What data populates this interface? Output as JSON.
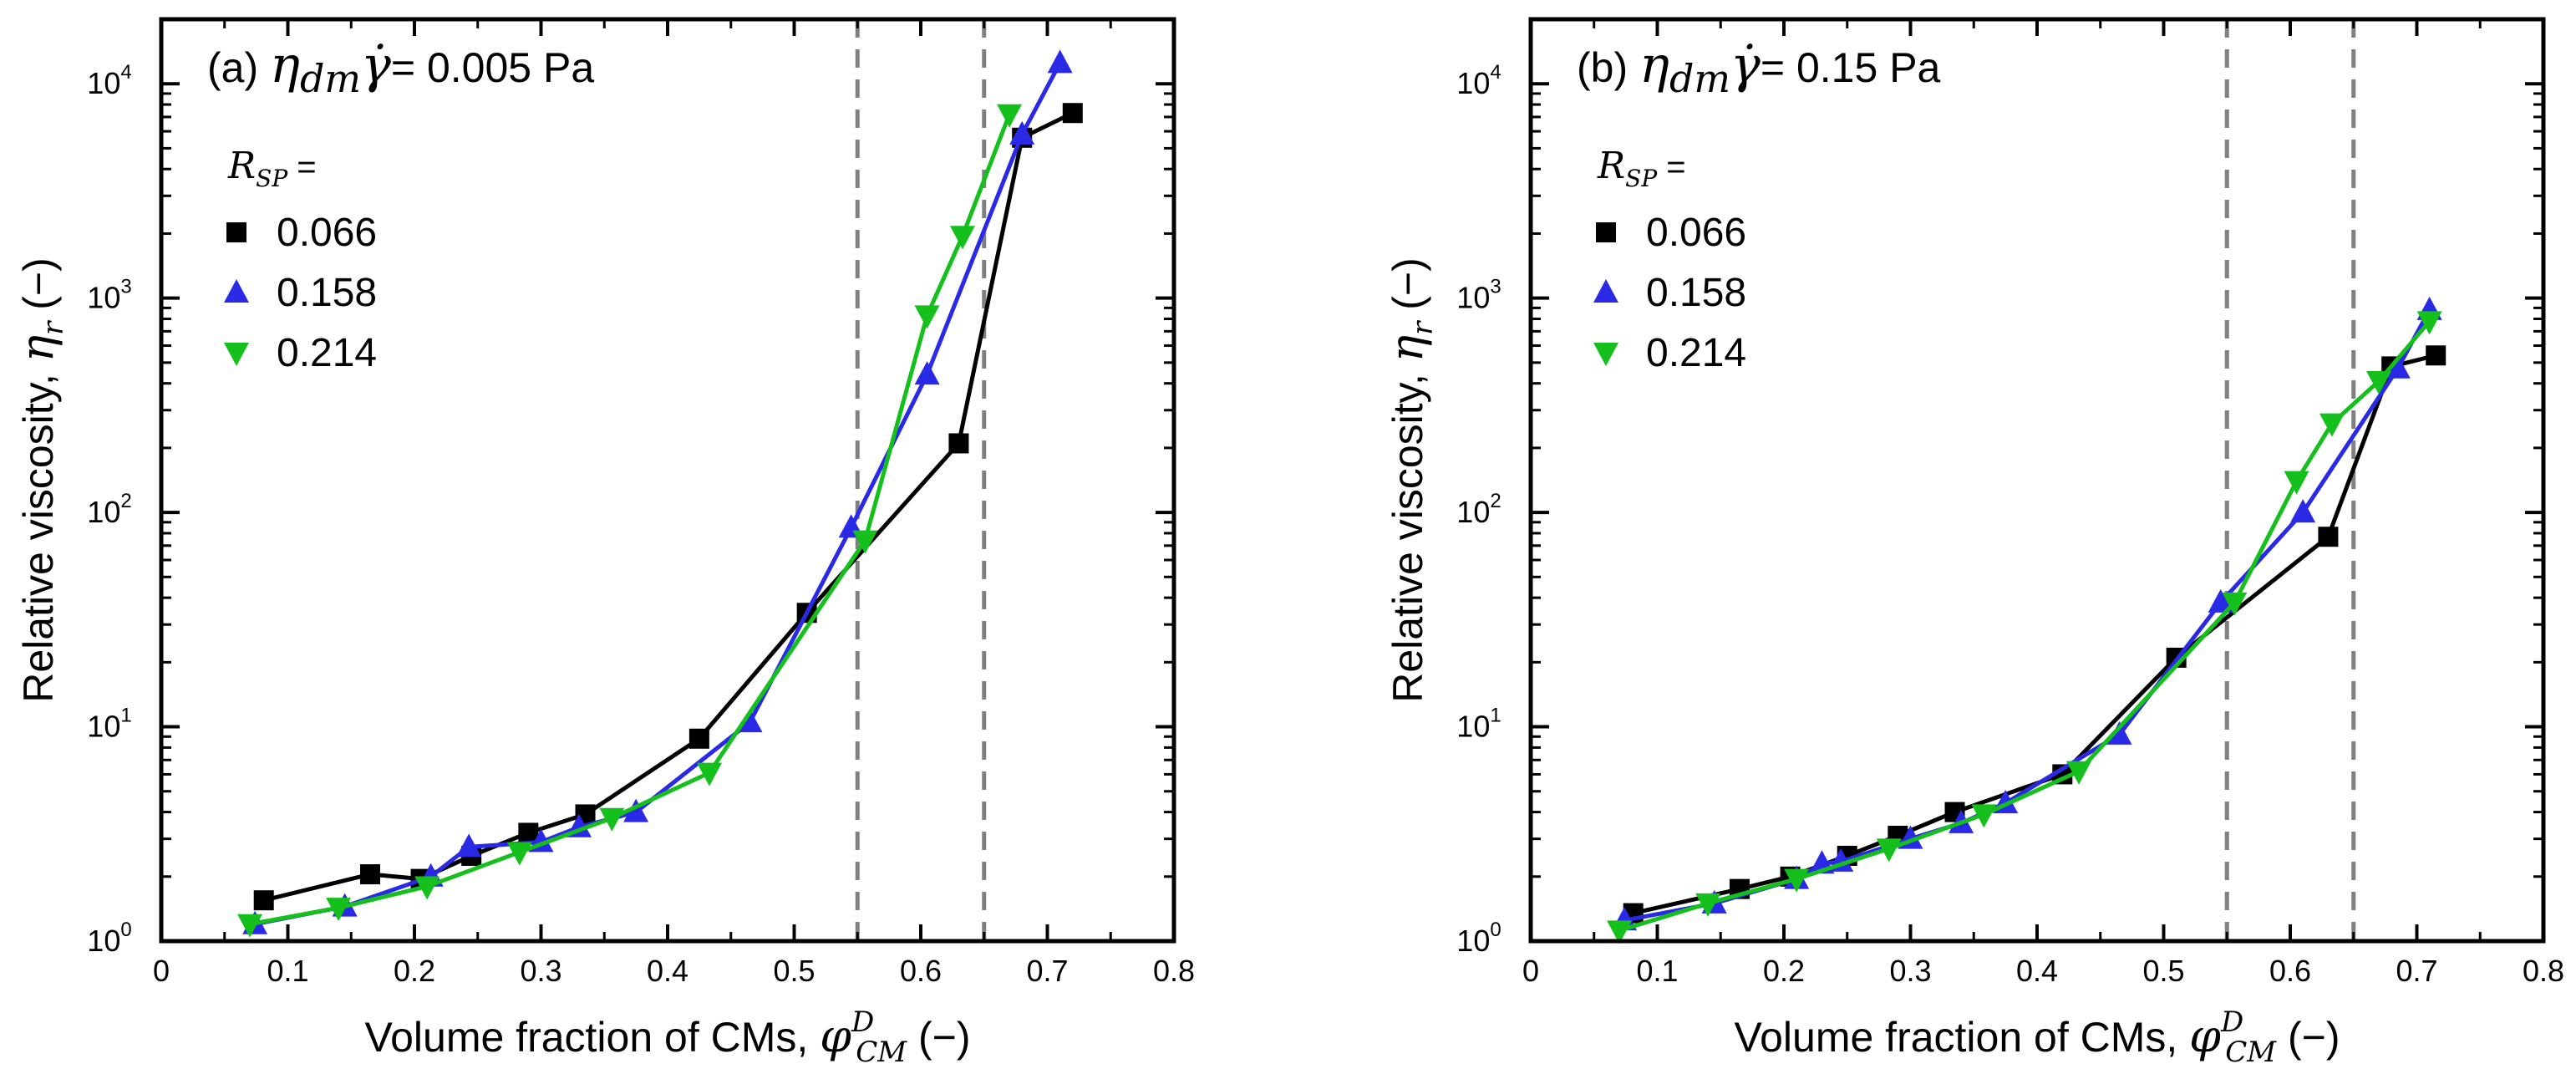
{
  "colors": {
    "series_0066": "#000000",
    "series_0158": "#2a2ae6",
    "series_0214": "#16c01c",
    "dashed": "#808080",
    "axes": "#000000"
  },
  "shared": {
    "xlabel_prefix": "Volume fraction of CMs, ",
    "xlabel_symbol": "φ",
    "xlabel_sub": "CM",
    "xlabel_sup": "D",
    "xlabel_suffix": " (−)",
    "ylabel_prefix": "Relative viscosity, ",
    "ylabel_symbol": "η",
    "ylabel_sub": "r",
    "ylabel_suffix": " (−)",
    "legend_title_symbol": "R",
    "legend_title_sub": "SP",
    "legend_title_suffix": " =",
    "x_ticks": [
      "0",
      "0.1",
      "0.2",
      "0.3",
      "0.4",
      "0.5",
      "0.6",
      "0.7",
      "0.8"
    ],
    "y_tick_base": "10",
    "y_tick_exponents": [
      "0",
      "1",
      "2",
      "3",
      "4"
    ]
  },
  "chart_data": [
    {
      "type": "line",
      "panel": "(a)",
      "title_prefix": "(a) ",
      "title_symbol": "η",
      "title_sub": "dm",
      "title_gamma": "γ̇",
      "title_value": "= 0.005 Pa",
      "xlabel": "Volume fraction of CMs, φ_CM^D (−)",
      "ylabel": "Relative viscosity, η_r (−)",
      "xlim": [
        0,
        0.8
      ],
      "ylim": [
        1,
        20000
      ],
      "yscale": "log",
      "vlines": [
        0.55,
        0.65
      ],
      "legend": "top-left",
      "series": [
        {
          "name": "0.066",
          "marker": "square",
          "x": [
            0.081,
            0.165,
            0.205,
            0.245,
            0.29,
            0.335,
            0.425,
            0.51,
            0.63,
            0.68,
            0.72
          ],
          "y": [
            1.55,
            2.05,
            1.95,
            2.5,
            3.2,
            3.9,
            8.8,
            34,
            210,
            5600,
            7300
          ]
        },
        {
          "name": "0.158",
          "marker": "triangle-up",
          "x": [
            0.074,
            0.145,
            0.213,
            0.243,
            0.3,
            0.33,
            0.375,
            0.465,
            0.545,
            0.605,
            0.68,
            0.71
          ],
          "y": [
            1.2,
            1.45,
            2.0,
            2.75,
            2.9,
            3.4,
            4.0,
            10.5,
            85,
            440,
            5800,
            12500
          ]
        },
        {
          "name": "0.214",
          "marker": "triangle-down",
          "x": [
            0.07,
            0.14,
            0.21,
            0.283,
            0.356,
            0.433,
            0.556,
            0.605,
            0.633,
            0.67
          ],
          "y": [
            1.2,
            1.43,
            1.8,
            2.6,
            3.75,
            6.1,
            74,
            830,
            1950,
            7200
          ]
        }
      ]
    },
    {
      "type": "line",
      "panel": "(b)",
      "title_prefix": "(b) ",
      "title_symbol": "η",
      "title_sub": "dm",
      "title_gamma": "γ̇",
      "title_value": "= 0.15 Pa",
      "xlabel": "Volume fraction of CMs, φ_CM^D (−)",
      "ylabel": "Relative viscosity, η_r (−)",
      "xlim": [
        0,
        0.8
      ],
      "ylim": [
        1,
        20000
      ],
      "yscale": "log",
      "vlines": [
        0.55,
        0.65
      ],
      "legend": "top-left",
      "series": [
        {
          "name": "0.066",
          "marker": "square",
          "x": [
            0.081,
            0.165,
            0.205,
            0.25,
            0.29,
            0.335,
            0.42,
            0.51,
            0.63,
            0.68,
            0.715
          ],
          "y": [
            1.35,
            1.75,
            2.0,
            2.5,
            3.1,
            4.0,
            6.0,
            21,
            77,
            480,
            540
          ]
        },
        {
          "name": "0.158",
          "marker": "triangle-up",
          "x": [
            0.074,
            0.145,
            0.21,
            0.23,
            0.245,
            0.3,
            0.34,
            0.375,
            0.465,
            0.545,
            0.61,
            0.685,
            0.71
          ],
          "y": [
            1.25,
            1.5,
            1.95,
            2.3,
            2.35,
            3.0,
            3.55,
            4.4,
            9.2,
            38,
            100,
            470,
            880
          ]
        },
        {
          "name": "0.214",
          "marker": "triangle-down",
          "x": [
            0.07,
            0.14,
            0.21,
            0.283,
            0.358,
            0.433,
            0.556,
            0.605,
            0.633,
            0.67,
            0.71
          ],
          "y": [
            1.12,
            1.5,
            1.95,
            2.7,
            3.9,
            6.2,
            38,
            140,
            260,
            410,
            780
          ]
        }
      ]
    }
  ]
}
